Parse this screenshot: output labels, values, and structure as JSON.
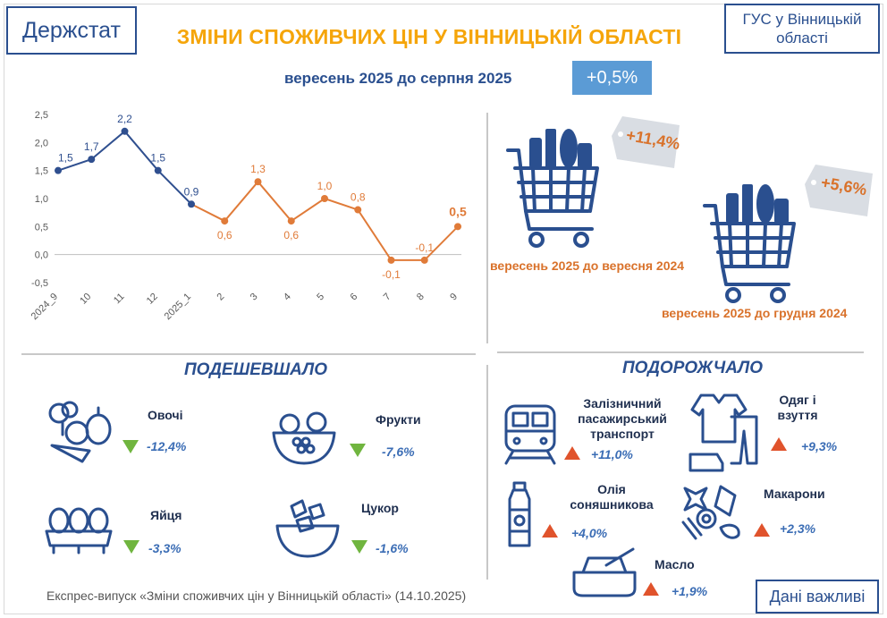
{
  "header": {
    "logo_text": "Держстат",
    "org_text": "ГУС у Вінницькій області",
    "title": "ЗМІНИ СПОЖИВЧИХ ЦІН У ВІННИЦЬКІЙ ОБЛАСТІ"
  },
  "monthly": {
    "label": "вересень 2025 до серпня 2025",
    "value": "+0,5%"
  },
  "chart_data": {
    "type": "line",
    "categories": [
      "2024_9",
      "10",
      "11",
      "12",
      "2025_1",
      "2",
      "3",
      "4",
      "5",
      "6",
      "7",
      "8",
      "9"
    ],
    "values": [
      1.5,
      1.7,
      2.2,
      1.5,
      0.9,
      0.6,
      1.3,
      0.6,
      1.0,
      0.8,
      -0.1,
      -0.1,
      0.5
    ],
    "value_labels": [
      "1,5",
      "1,7",
      "2,2",
      "1,5",
      "0,9",
      "0,6",
      "1,3",
      "0,6",
      "1,0",
      "0,8",
      "-0,1",
      "-0,1",
      "0,5"
    ],
    "ylim": [
      -0.5,
      2.5
    ],
    "yticks": [
      -0.5,
      0.0,
      0.5,
      1.0,
      1.5,
      2.0,
      2.5
    ],
    "ytick_labels": [
      "-0,5",
      "0,0",
      "0,5",
      "1,0",
      "1,5",
      "2,0",
      "2,5"
    ],
    "grid": false,
    "colors": {
      "year2024": "#2f4f8f",
      "year2025": "#e07b39"
    },
    "split_index": 4,
    "title": "",
    "xlabel": "",
    "ylabel": ""
  },
  "yearly": {
    "value": "+11,4%",
    "label": "вересень 2025 до вересня 2024"
  },
  "since_december": {
    "value": "+5,6%",
    "label": "вересень 2025 до грудня 2024"
  },
  "cheaper": {
    "heading": "ПОДЕШЕВШАЛО",
    "items": [
      {
        "name": "Овочі",
        "value": "-12,4%",
        "icon": "vegetables-icon"
      },
      {
        "name": "Фрукти",
        "value": "-7,6%",
        "icon": "fruit-bowl-icon"
      },
      {
        "name": "Яйця",
        "value": "-3,3%",
        "icon": "eggs-icon"
      },
      {
        "name": "Цукор",
        "value": "-1,6%",
        "icon": "sugar-icon"
      }
    ]
  },
  "pricier": {
    "heading": "ПОДОРОЖЧАЛО",
    "items": [
      {
        "name": "Залізничний пасажирський транспорт",
        "value": "+11,0%",
        "icon": "train-icon"
      },
      {
        "name": "Одяг і взуття",
        "value": "+9,3%",
        "icon": "clothes-icon"
      },
      {
        "name": "Олія соняшникова",
        "value": "+4,0%",
        "icon": "oil-bottle-icon"
      },
      {
        "name": "Макарони",
        "value": "+2,3%",
        "icon": "pasta-icon"
      },
      {
        "name": "Масло",
        "value": "+1,9%",
        "icon": "butter-icon"
      }
    ]
  },
  "footer": {
    "text": "Експрес-випуск «Зміни споживчих цін у Вінницькій області» (14.10.2025)",
    "important": "Дані важливі"
  },
  "colors": {
    "title": "#f5a50a",
    "primary_blue": "#2a4f8f",
    "badge": "#5b9bd5",
    "down": "#70b53f",
    "up": "#e0532c",
    "caption_orange": "#d9722b"
  }
}
